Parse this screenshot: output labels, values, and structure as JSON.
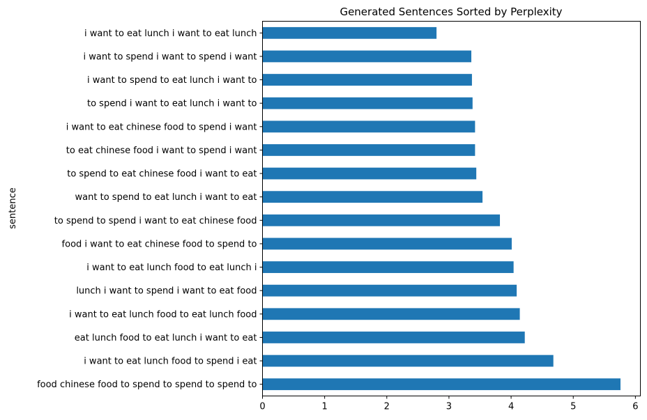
{
  "chart_data": {
    "type": "bar",
    "orientation": "horizontal",
    "title": "Generated Sentences Sorted by Perplexity",
    "ylabel": "sentence",
    "xlabel": "",
    "xlim": [
      0,
      6.08
    ],
    "xticks": [
      0,
      1,
      2,
      3,
      4,
      5,
      6
    ],
    "grid": false,
    "legend": "none",
    "bar_color": "#1f77b4",
    "categories": [
      "i want to eat lunch i want to eat lunch",
      "i want to spend i want to spend i want",
      "i want to spend to eat lunch i want to",
      "to spend i want to eat lunch i want to",
      "i want to eat chinese food to spend i want",
      "to eat chinese food i want to spend i want",
      "to spend to eat chinese food i want to eat",
      "want to spend to eat lunch i want to eat",
      "to spend to spend i want to eat chinese food",
      "food i want to eat chinese food to spend to",
      "i want to eat lunch food to eat lunch i",
      "lunch i want to spend i want to eat food",
      "i want to eat lunch food to eat lunch food",
      "eat lunch food to eat lunch i want to eat",
      "i want to eat lunch food to spend i eat",
      "food chinese food to spend to spend to spend to"
    ],
    "values": [
      2.8,
      3.36,
      3.37,
      3.38,
      3.42,
      3.42,
      3.44,
      3.54,
      3.82,
      4.01,
      4.04,
      4.09,
      4.14,
      4.22,
      4.68,
      5.76
    ]
  }
}
